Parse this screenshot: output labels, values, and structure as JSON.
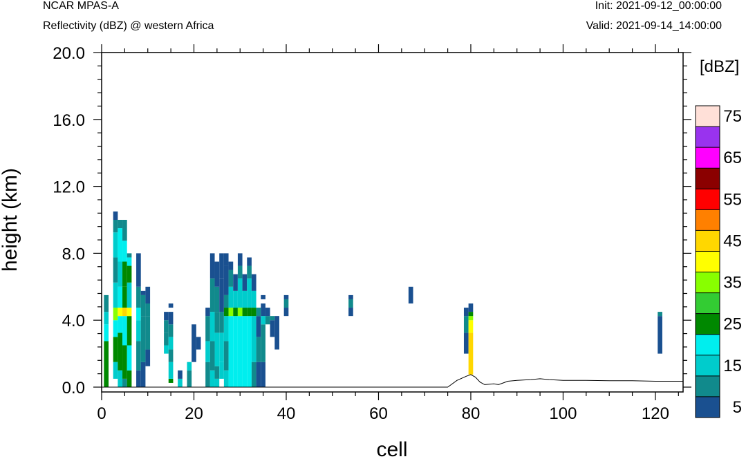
{
  "header": {
    "title": "NCAR MPAS-A",
    "subtitle": "Reflectivity (dBZ) @ western Africa",
    "init": "Init: 2021-09-12_00:00:00",
    "valid": "Valid: 2021-09-14_14:00:00"
  },
  "chart_data": {
    "type": "heatmap",
    "title": "",
    "xlabel": "cell",
    "ylabel": "height (km)",
    "xlim": [
      0,
      126
    ],
    "ylim": [
      0,
      20
    ],
    "x_ticks": [
      0,
      20,
      40,
      60,
      80,
      100,
      120
    ],
    "y_ticks": [
      0.0,
      4.0,
      8.0,
      12.0,
      16.0,
      20.0
    ],
    "y_tick_labels": [
      "0.0",
      "4.0",
      "8.0",
      "12.0",
      "16.0",
      "20.0"
    ],
    "grid": false,
    "colorbar": {
      "unit_label": "[dBZ]",
      "levels": [
        5,
        10,
        15,
        20,
        25,
        30,
        35,
        40,
        45,
        50,
        55,
        60,
        65,
        70,
        75
      ],
      "tick_labels": [
        "5",
        "15",
        "25",
        "35",
        "45",
        "55",
        "65",
        "75"
      ],
      "colors": [
        "#1a5090",
        "#118a8c",
        "#00cccc",
        "#00eeee",
        "#008800",
        "#33cc33",
        "#88ff00",
        "#ffff00",
        "#ffd700",
        "#ff8000",
        "#ff0000",
        "#8b0000",
        "#ff00ff",
        "#9933ee",
        "#ffe0d8"
      ]
    },
    "terrain": [
      [
        0,
        0
      ],
      [
        75,
        0
      ],
      [
        77,
        0.4
      ],
      [
        79,
        0.65
      ],
      [
        80,
        0.75
      ],
      [
        81,
        0.6
      ],
      [
        82,
        0.3
      ],
      [
        83,
        0.15
      ],
      [
        85,
        0.2
      ],
      [
        86,
        0.15
      ],
      [
        87,
        0.25
      ],
      [
        88,
        0.35
      ],
      [
        90,
        0.4
      ],
      [
        93,
        0.45
      ],
      [
        95,
        0.5
      ],
      [
        97,
        0.45
      ],
      [
        100,
        0.4
      ],
      [
        105,
        0.4
      ],
      [
        110,
        0.38
      ],
      [
        115,
        0.38
      ],
      [
        120,
        0.35
      ],
      [
        126,
        0.35
      ]
    ],
    "columns": [
      {
        "x": 1,
        "runs": [
          [
            0,
            2.75,
            25
          ],
          [
            2.75,
            3.75,
            20
          ],
          [
            3.75,
            4.5,
            15
          ],
          [
            4.5,
            5.5,
            10
          ]
        ]
      },
      {
        "x": 3,
        "runs": [
          [
            0.5,
            1.5,
            15
          ],
          [
            1.5,
            3.0,
            25
          ],
          [
            3.0,
            4.0,
            20
          ],
          [
            4.0,
            4.75,
            35
          ],
          [
            4.75,
            6.25,
            15
          ],
          [
            6.25,
            7.75,
            10
          ],
          [
            7.75,
            9.25,
            15
          ],
          [
            9.25,
            10.0,
            10
          ],
          [
            10.0,
            10.5,
            5
          ]
        ]
      },
      {
        "x": 4,
        "runs": [
          [
            0,
            1.0,
            15
          ],
          [
            1.0,
            3.25,
            25
          ],
          [
            3.25,
            4.25,
            20
          ],
          [
            4.25,
            4.75,
            40
          ],
          [
            4.75,
            6.0,
            20
          ],
          [
            6.0,
            7.5,
            15
          ],
          [
            7.5,
            9.5,
            20
          ],
          [
            9.5,
            10.0,
            10
          ]
        ]
      },
      {
        "x": 5,
        "runs": [
          [
            0,
            0.5,
            10
          ],
          [
            0.5,
            2.5,
            25
          ],
          [
            2.5,
            4.25,
            20
          ],
          [
            4.25,
            4.75,
            45
          ],
          [
            4.75,
            6.0,
            25
          ],
          [
            6.0,
            7.5,
            25
          ],
          [
            7.5,
            8.75,
            20
          ],
          [
            8.75,
            10.0,
            10
          ]
        ]
      },
      {
        "x": 6,
        "runs": [
          [
            0,
            1.0,
            25
          ],
          [
            1.0,
            2.5,
            20
          ],
          [
            2.5,
            4.25,
            25
          ],
          [
            4.25,
            4.75,
            40
          ],
          [
            4.75,
            6.25,
            15
          ],
          [
            6.25,
            7.25,
            25
          ],
          [
            7.25,
            7.75,
            20
          ],
          [
            7.75,
            8.0,
            10
          ]
        ]
      },
      {
        "x": 8,
        "runs": [
          [
            0,
            1.0,
            5
          ],
          [
            1.0,
            2.75,
            10
          ],
          [
            2.75,
            4.0,
            15
          ],
          [
            4.0,
            4.75,
            20
          ],
          [
            4.75,
            6.0,
            10
          ],
          [
            6.0,
            8.0,
            5
          ]
        ]
      },
      {
        "x": 9,
        "runs": [
          [
            0,
            1.5,
            5
          ],
          [
            1.5,
            4.25,
            10
          ],
          [
            4.25,
            5.5,
            10
          ],
          [
            5.5,
            5.75,
            5
          ]
        ]
      },
      {
        "x": 10,
        "runs": [
          [
            1.25,
            2.25,
            5
          ],
          [
            2.25,
            4.25,
            10
          ],
          [
            4.25,
            5.0,
            10
          ],
          [
            5.0,
            6.0,
            5
          ]
        ]
      },
      {
        "x": 14,
        "runs": [
          [
            2.0,
            2.5,
            15
          ],
          [
            2.5,
            3.25,
            10
          ],
          [
            3.25,
            4.0,
            10
          ],
          [
            4.0,
            4.5,
            5
          ]
        ]
      },
      {
        "x": 15,
        "runs": [
          [
            0.25,
            0.5,
            25
          ],
          [
            0.5,
            1.5,
            15
          ],
          [
            1.5,
            2.25,
            10
          ],
          [
            2.25,
            3.0,
            15
          ],
          [
            3.0,
            3.75,
            10
          ],
          [
            3.75,
            4.5,
            5
          ],
          [
            4.75,
            5.0,
            5
          ]
        ]
      },
      {
        "x": 17,
        "runs": [
          [
            0,
            0.5,
            15
          ],
          [
            0.5,
            1.0,
            5
          ]
        ]
      },
      {
        "x": 19,
        "runs": [
          [
            0,
            1.0,
            10
          ],
          [
            1.0,
            1.5,
            15
          ]
        ]
      },
      {
        "x": 20,
        "runs": [
          [
            1.5,
            3.75,
            5
          ]
        ]
      },
      {
        "x": 21,
        "runs": [
          [
            2.25,
            3.0,
            5
          ]
        ]
      },
      {
        "x": 23,
        "runs": [
          [
            0,
            1.5,
            10
          ],
          [
            1.5,
            2.75,
            15
          ],
          [
            2.75,
            4.25,
            10
          ],
          [
            4.25,
            4.75,
            5
          ]
        ]
      },
      {
        "x": 24,
        "runs": [
          [
            0,
            1.0,
            15
          ],
          [
            1.0,
            2.75,
            10
          ],
          [
            2.75,
            4.5,
            15
          ],
          [
            4.5,
            6.5,
            10
          ],
          [
            6.5,
            8.0,
            5
          ]
        ]
      },
      {
        "x": 25,
        "runs": [
          [
            0,
            0.5,
            15
          ],
          [
            0.5,
            1.25,
            10
          ],
          [
            1.25,
            3.25,
            15
          ],
          [
            3.25,
            4.5,
            10
          ],
          [
            4.5,
            6.0,
            10
          ],
          [
            6.0,
            7.5,
            5
          ]
        ]
      },
      {
        "x": 26,
        "runs": [
          [
            0.5,
            1.5,
            15
          ],
          [
            1.5,
            3.25,
            15
          ],
          [
            3.25,
            4.5,
            10
          ],
          [
            4.5,
            6.5,
            5
          ],
          [
            6.5,
            8.0,
            5
          ]
        ]
      },
      {
        "x": 27,
        "runs": [
          [
            0,
            1.0,
            15
          ],
          [
            1.0,
            2.75,
            10
          ],
          [
            2.75,
            4.25,
            15
          ],
          [
            4.25,
            4.75,
            25
          ],
          [
            4.75,
            5.5,
            10
          ],
          [
            5.5,
            7.25,
            5
          ],
          [
            7.25,
            8.0,
            5
          ]
        ]
      },
      {
        "x": 28,
        "runs": [
          [
            0,
            4.25,
            20
          ],
          [
            4.25,
            4.75,
            35
          ],
          [
            4.75,
            6.0,
            15
          ],
          [
            6.0,
            7.0,
            10
          ],
          [
            7.0,
            7.5,
            5
          ]
        ]
      },
      {
        "x": 29,
        "runs": [
          [
            0,
            4.25,
            20
          ],
          [
            4.25,
            4.75,
            25
          ],
          [
            4.75,
            5.75,
            15
          ],
          [
            5.75,
            6.75,
            5
          ]
        ]
      },
      {
        "x": 30,
        "runs": [
          [
            0,
            4.25,
            20
          ],
          [
            4.25,
            4.75,
            35
          ],
          [
            4.75,
            6.5,
            15
          ],
          [
            6.5,
            7.25,
            10
          ],
          [
            7.25,
            8.0,
            5
          ]
        ]
      },
      {
        "x": 31,
        "runs": [
          [
            0,
            4.25,
            20
          ],
          [
            4.25,
            4.75,
            25
          ],
          [
            4.75,
            5.75,
            15
          ],
          [
            5.75,
            6.75,
            5
          ]
        ]
      },
      {
        "x": 32,
        "runs": [
          [
            0,
            4.25,
            20
          ],
          [
            4.25,
            4.75,
            25
          ],
          [
            4.75,
            6.5,
            15
          ],
          [
            6.5,
            7.25,
            10
          ],
          [
            7.25,
            7.75,
            5
          ]
        ]
      },
      {
        "x": 33,
        "runs": [
          [
            0,
            1.5,
            10
          ],
          [
            1.5,
            4.25,
            15
          ],
          [
            4.25,
            4.75,
            25
          ],
          [
            4.75,
            5.75,
            15
          ],
          [
            5.75,
            6.75,
            5
          ]
        ]
      },
      {
        "x": 34,
        "runs": [
          [
            0,
            1.5,
            5
          ],
          [
            1.5,
            3.0,
            10
          ],
          [
            3.0,
            4.25,
            5
          ],
          [
            4.25,
            4.75,
            10
          ]
        ]
      },
      {
        "x": 35,
        "runs": [
          [
            0,
            1.5,
            5
          ],
          [
            1.5,
            3.75,
            10
          ],
          [
            3.75,
            4.25,
            15
          ],
          [
            4.25,
            5.0,
            5
          ],
          [
            5.25,
            5.5,
            5
          ]
        ]
      },
      {
        "x": 36,
        "runs": [
          [
            3.75,
            4.25,
            10
          ],
          [
            4.25,
            4.75,
            5
          ]
        ]
      },
      {
        "x": 37,
        "runs": [
          [
            3.0,
            4.0,
            5
          ],
          [
            4.0,
            4.25,
            10
          ]
        ]
      },
      {
        "x": 38,
        "runs": [
          [
            2.25,
            4.25,
            5
          ]
        ]
      },
      {
        "x": 40,
        "runs": [
          [
            4.25,
            4.75,
            5
          ],
          [
            4.75,
            5.25,
            10
          ],
          [
            5.25,
            5.5,
            5
          ]
        ]
      },
      {
        "x": 54,
        "runs": [
          [
            4.25,
            4.75,
            5
          ],
          [
            4.75,
            5.25,
            10
          ],
          [
            5.25,
            5.5,
            5
          ]
        ]
      },
      {
        "x": 67,
        "runs": [
          [
            5.0,
            6.0,
            5
          ]
        ]
      },
      {
        "x": 79,
        "runs": [
          [
            2.0,
            3.25,
            5
          ],
          [
            3.25,
            4.25,
            10
          ],
          [
            4.25,
            4.75,
            5
          ]
        ]
      },
      {
        "x": 80,
        "runs": [
          [
            0.75,
            3.25,
            45
          ],
          [
            3.25,
            4.0,
            40
          ],
          [
            4.0,
            4.25,
            35
          ],
          [
            4.25,
            4.5,
            25
          ],
          [
            4.5,
            5.0,
            5
          ]
        ]
      },
      {
        "x": 121,
        "runs": [
          [
            2.0,
            4.25,
            5
          ],
          [
            4.25,
            4.5,
            10
          ]
        ]
      }
    ]
  }
}
